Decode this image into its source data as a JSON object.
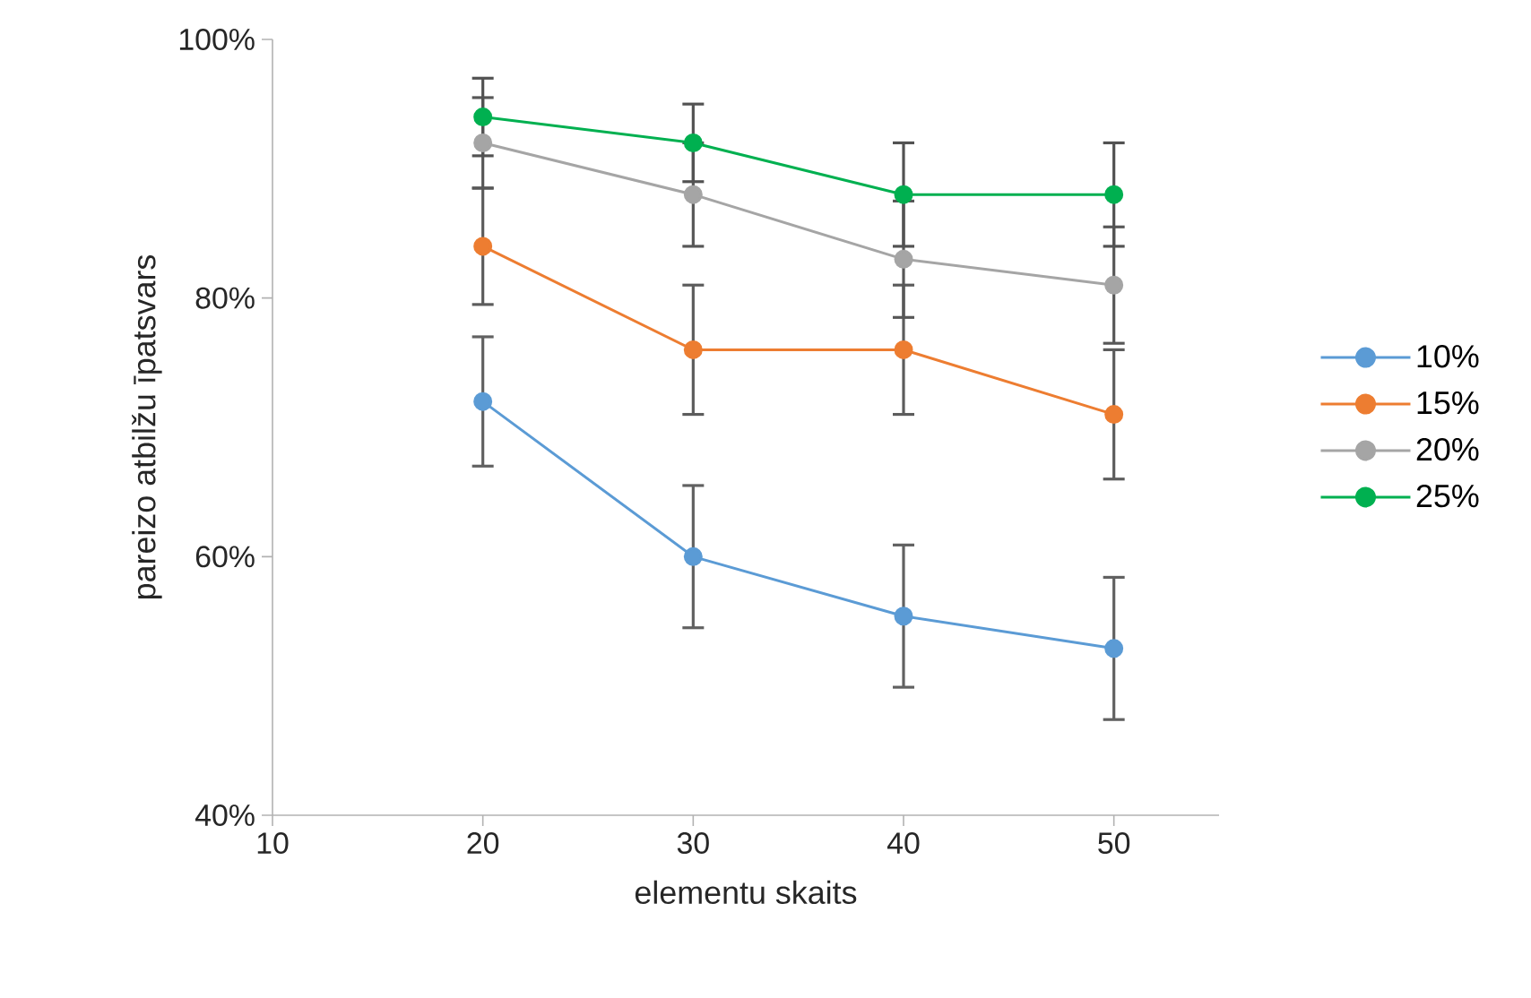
{
  "chart_data": {
    "type": "line",
    "xlabel": "elementu skaits",
    "ylabel": "pareizo atbilžu īpatsvars",
    "x": [
      20,
      30,
      40,
      50
    ],
    "xlim": [
      10,
      55
    ],
    "xticks": [
      10,
      20,
      30,
      40,
      50
    ],
    "ylim": [
      40,
      100
    ],
    "yticks": [
      {
        "value": 40,
        "label": "40%"
      },
      {
        "value": 60,
        "label": "60%"
      },
      {
        "value": 80,
        "label": "80%"
      },
      {
        "value": 100,
        "label": "100%"
      }
    ],
    "legend": "right",
    "marker": "circle",
    "grid": false,
    "series": [
      {
        "name": "10%",
        "color": "#5b9bd5",
        "values": [
          72,
          60,
          55.4,
          52.9
        ],
        "errors": [
          5,
          5.5,
          5.5,
          5.5
        ]
      },
      {
        "name": "15%",
        "color": "#ed7d31",
        "values": [
          84,
          76,
          76,
          71
        ],
        "errors": [
          4.5,
          5,
          5,
          5
        ]
      },
      {
        "name": "20%",
        "color": "#a5a5a5",
        "values": [
          92,
          88,
          83,
          81
        ],
        "errors": [
          3.5,
          4,
          4.5,
          4.5
        ]
      },
      {
        "name": "25%",
        "color": "#00b050",
        "values": [
          94,
          92,
          88,
          88
        ],
        "errors": [
          3,
          3,
          4,
          4
        ]
      }
    ]
  }
}
